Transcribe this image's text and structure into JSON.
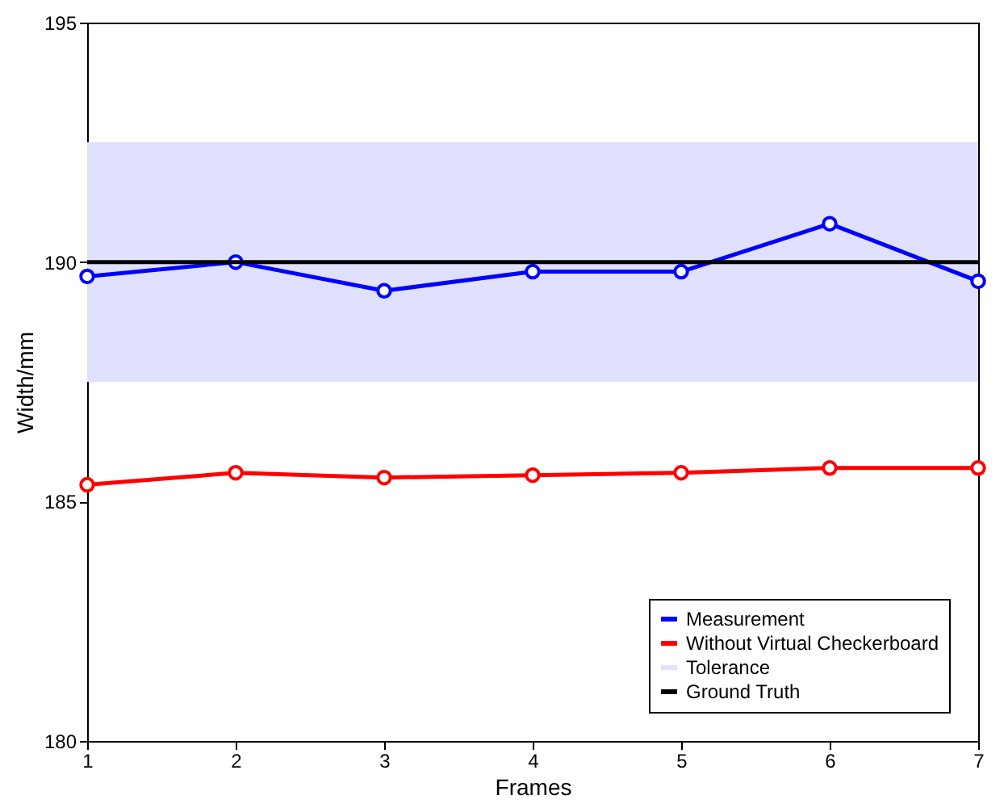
{
  "chart_data": {
    "type": "line",
    "xlabel": "Frames",
    "ylabel": "Width/mm",
    "x": [
      1,
      2,
      3,
      4,
      5,
      6,
      7
    ],
    "series": [
      {
        "name": "Measurement",
        "color": "#0000ff",
        "values": [
          189.7,
          190.0,
          189.4,
          189.8,
          189.8,
          190.8,
          189.6
        ]
      },
      {
        "name": "Without Virtual Checkerboard",
        "color": "#ff0000",
        "values": [
          185.35,
          185.6,
          185.5,
          185.55,
          185.6,
          185.7,
          185.7
        ]
      }
    ],
    "bands": [
      {
        "axis": "y",
        "from": 187.5,
        "to": 192.5,
        "label": "Tolerance",
        "color": "#e0e0ff"
      }
    ],
    "ref_lines": [
      {
        "axis": "y",
        "value": 190,
        "label": "Ground Truth",
        "color": "#000000"
      }
    ],
    "xlim": [
      1,
      7
    ],
    "xticks": [
      1,
      2,
      3,
      4,
      5,
      6,
      7
    ],
    "ylim": [
      180,
      195
    ],
    "yticks": [
      180,
      185,
      190,
      195
    ],
    "grid": false,
    "legend": "bottom right",
    "marker": "circle",
    "line_style": "solid"
  }
}
